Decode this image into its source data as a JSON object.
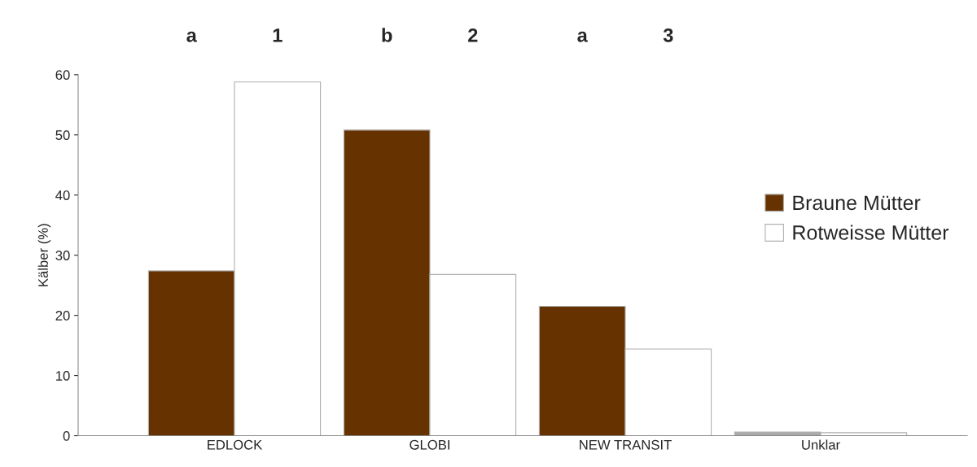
{
  "chart_data": {
    "type": "bar",
    "ylabel": "Kälber (%)",
    "categories": [
      "EDLOCK",
      "GLOBI",
      "NEW TRANSIT",
      "Unklar"
    ],
    "series": [
      {
        "name": "Braune Mütter",
        "colors": [
          "#663300",
          "#663300",
          "#663300",
          "#aaaaaa"
        ],
        "values": [
          27.4,
          50.8,
          21.5,
          0.6
        ]
      },
      {
        "name": "Rotweisse Mütter",
        "colors": [
          "#ffffff",
          "#ffffff",
          "#ffffff",
          "#ffffff"
        ],
        "values": [
          58.8,
          26.8,
          14.4,
          0.5
        ]
      }
    ],
    "ylim": [
      0,
      60
    ],
    "yticks": [
      0,
      10,
      20,
      30,
      40,
      50,
      60
    ],
    "grid": false,
    "legend": "right",
    "annotations": [
      "a",
      "1",
      "b",
      "2",
      "a",
      "3"
    ]
  }
}
